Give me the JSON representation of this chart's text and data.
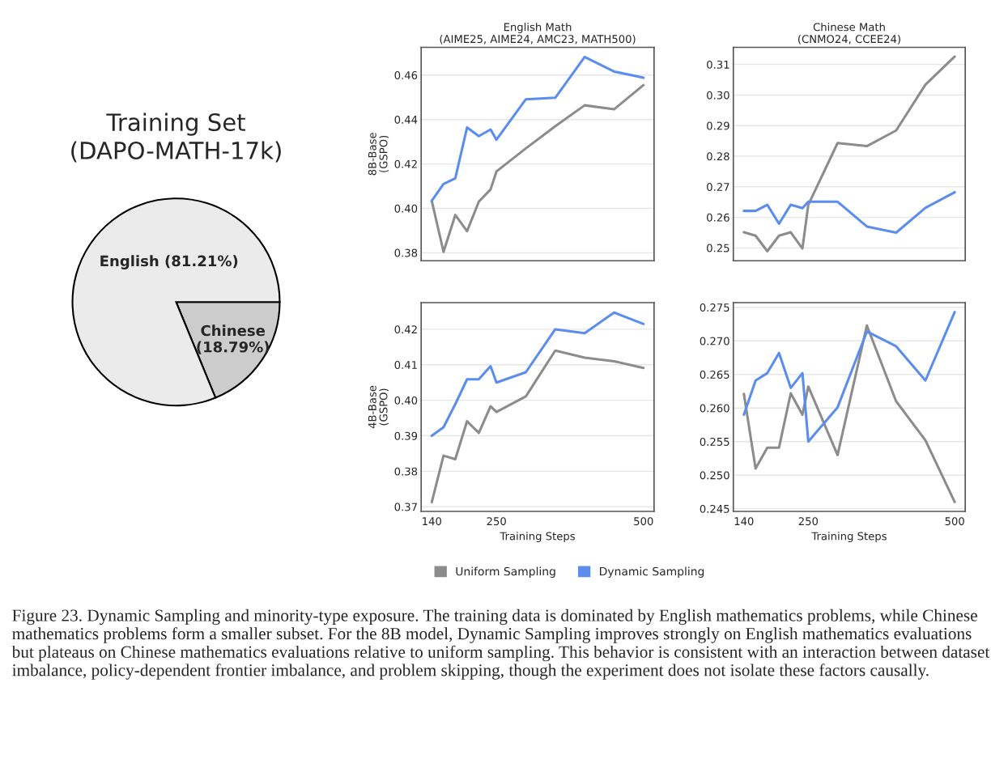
{
  "chart_data": [
    {
      "type": "pie",
      "title": "Training Set\n(DAPO-MATH-17k)",
      "categories": [
        "Chinese\n(18.79%)",
        "English (81.21%)"
      ],
      "values": [
        18.79,
        81.21
      ],
      "colors": [
        "#cccccc",
        "#ebebeb"
      ],
      "annotations": [
        "Figure 23. Dynamic Sampling and minority-type exposure. The training data is dominated by English mathematics problems, while Chinese mathematics problems form a smaller subset. For the 8B model, Dynamic Sampling improves strongly on English mathematics evaluations but plateaus on Chinese mathematics evaluations relative to uniform sampling. This behavior is consistent with an interaction between dataset imbalance, policy-dependent frontier imbalance, and problem skipping, though the experiment does not isolate these factors causally."
      ]
    },
    {
      "type": "line",
      "title": "English Math\n(AIME25, AIME24, AMC23, MATH500)",
      "ylabel": "8B-Base\n(GSPO)",
      "x": [
        140,
        160,
        180,
        200,
        220,
        240,
        250,
        300,
        350,
        400,
        450,
        500
      ],
      "xlim": [
        122,
        518
      ],
      "xticks": [
        140,
        250,
        500
      ],
      "ylim": [
        0.3764,
        0.4725
      ],
      "yticks": [
        {
          "value": 0.38,
          "label": "0.38"
        },
        {
          "value": 0.4,
          "label": "0.40"
        },
        {
          "value": 0.42,
          "label": "0.42"
        },
        {
          "value": 0.44,
          "label": "0.44"
        },
        {
          "value": 0.46,
          "label": "0.46"
        }
      ],
      "grid": "y",
      "tick_labels": "y",
      "legend": "bottom",
      "series": [
        {
          "name": "Uniform Sampling",
          "color": "#8c8c8c",
          "values": [
            0.4034,
            0.3804,
            0.397,
            0.3897,
            0.403,
            0.4085,
            0.4166,
            0.427,
            0.437,
            0.4464,
            0.4446,
            0.4555
          ]
        },
        {
          "name": "Dynamic Sampling",
          "color": "#5b8def",
          "values": [
            0.4034,
            0.411,
            0.4135,
            0.4364,
            0.4325,
            0.4355,
            0.4309,
            0.4491,
            0.4498,
            0.4682,
            0.4616,
            0.4588
          ]
        }
      ]
    },
    {
      "type": "line",
      "title": "Chinese Math\n(CNMO24, CCEE24)",
      "x": [
        140,
        160,
        180,
        200,
        220,
        240,
        250,
        300,
        350,
        400,
        450,
        500
      ],
      "xlim": [
        122,
        518
      ],
      "xticks": [
        140,
        250,
        500
      ],
      "ylim": [
        0.2458,
        0.3156
      ],
      "yticks": [
        {
          "value": 0.25,
          "label": "0.25"
        },
        {
          "value": 0.26,
          "label": "0.26"
        },
        {
          "value": 0.27,
          "label": "0.27"
        },
        {
          "value": 0.28,
          "label": "0.28"
        },
        {
          "value": 0.29,
          "label": "0.29"
        },
        {
          "value": 0.3,
          "label": "0.30"
        },
        {
          "value": 0.31,
          "label": "0.31"
        }
      ],
      "grid": "y",
      "tick_labels": "y",
      "series": [
        {
          "color": "#8c8c8c",
          "values": [
            0.2551,
            0.254,
            0.2489,
            0.254,
            0.2551,
            0.2498,
            0.2641,
            0.2843,
            0.2833,
            0.2884,
            0.3034,
            0.3126
          ]
        },
        {
          "color": "#5b8def",
          "values": [
            0.2621,
            0.2621,
            0.2641,
            0.2579,
            0.2641,
            0.263,
            0.2651,
            0.2651,
            0.257,
            0.255,
            0.2631,
            0.2682
          ]
        }
      ]
    },
    {
      "type": "line",
      "ylabel": "4B-Base\n(GSPO)",
      "xlabel": "Training Steps",
      "x": [
        140,
        160,
        180,
        200,
        220,
        240,
        250,
        300,
        350,
        400,
        450,
        500
      ],
      "xlim": [
        122,
        518
      ],
      "xticks": [
        140,
        250,
        500
      ],
      "ylim": [
        0.3687,
        0.4275
      ],
      "yticks": [
        {
          "value": 0.37,
          "label": "0.37"
        },
        {
          "value": 0.38,
          "label": "0.38"
        },
        {
          "value": 0.39,
          "label": "0.39"
        },
        {
          "value": 0.4,
          "label": "0.40"
        },
        {
          "value": 0.41,
          "label": "0.41"
        },
        {
          "value": 0.42,
          "label": "0.42"
        }
      ],
      "grid": "y",
      "series": [
        {
          "color": "#8c8c8c",
          "values": [
            0.3713,
            0.3844,
            0.3834,
            0.3941,
            0.3908,
            0.3983,
            0.3967,
            0.4011,
            0.414,
            0.412,
            0.411,
            0.4091
          ]
        },
        {
          "color": "#5b8def",
          "values": [
            0.39,
            0.3924,
            0.3989,
            0.4059,
            0.4059,
            0.4096,
            0.405,
            0.4079,
            0.42,
            0.4189,
            0.4247,
            0.4215
          ]
        }
      ]
    },
    {
      "type": "line",
      "xlabel": "Training Steps",
      "x": [
        140,
        160,
        180,
        200,
        220,
        240,
        250,
        300,
        350,
        400,
        450,
        500
      ],
      "xlim": [
        122,
        518
      ],
      "xticks": [
        140,
        250,
        500
      ],
      "ylim": [
        0.2446,
        0.2757
      ],
      "yticks": [
        {
          "value": 0.245,
          "label": "0.245"
        },
        {
          "value": 0.25,
          "label": "0.250"
        },
        {
          "value": 0.255,
          "label": "0.255"
        },
        {
          "value": 0.26,
          "label": "0.260"
        },
        {
          "value": 0.265,
          "label": "0.265"
        },
        {
          "value": 0.27,
          "label": "0.270"
        },
        {
          "value": 0.275,
          "label": "0.275"
        }
      ],
      "grid": "y",
      "series": [
        {
          "color": "#8c8c8c",
          "values": [
            0.2621,
            0.251,
            0.2541,
            0.2541,
            0.2622,
            0.259,
            0.2632,
            0.253,
            0.2723,
            0.261,
            0.2552,
            0.246
          ]
        },
        {
          "color": "#5b8def",
          "values": [
            0.259,
            0.2641,
            0.2652,
            0.2682,
            0.263,
            0.2652,
            0.255,
            0.2601,
            0.2714,
            0.2692,
            0.2641,
            0.2743
          ]
        }
      ]
    }
  ]
}
